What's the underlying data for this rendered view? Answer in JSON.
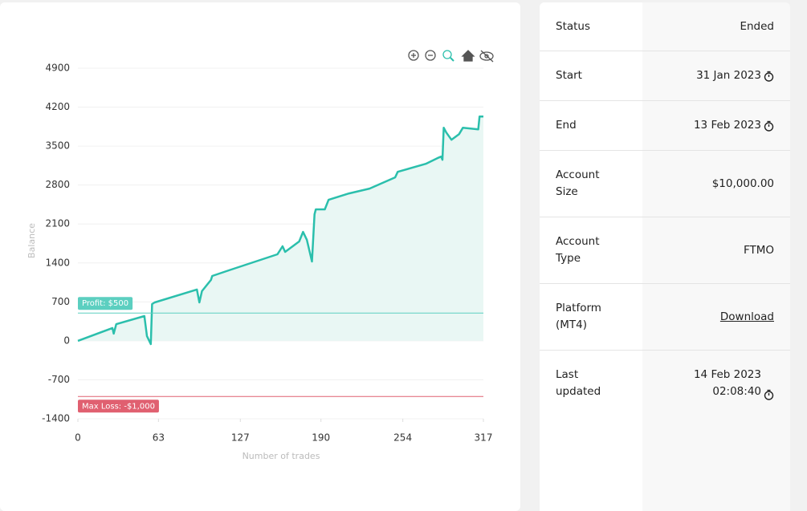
{
  "chart_data": {
    "type": "line",
    "color": "#2bbfac",
    "area_color": "#e9f7f4",
    "y_label": "Balance",
    "x_label": "Number of trades",
    "xlim": [
      0,
      317
    ],
    "xticks": [
      0,
      63,
      127,
      190,
      254,
      317
    ],
    "ylim": [
      -1400,
      4900
    ],
    "yticks": [
      4900,
      4200,
      3500,
      2800,
      2100,
      1400,
      700,
      0,
      -700,
      -1400
    ],
    "grid": true,
    "x": [
      0,
      27,
      28,
      30,
      52,
      54,
      57,
      58,
      60,
      93,
      95,
      97,
      104,
      105,
      118,
      156,
      160,
      162,
      173,
      176,
      179,
      183,
      185,
      186,
      193,
      196,
      212,
      228,
      248,
      250,
      272,
      281,
      284,
      285,
      286,
      288,
      292,
      298,
      301,
      313,
      314,
      317
    ],
    "values": [
      0,
      230,
      130,
      300,
      446,
      86,
      -58,
      662,
      690,
      922,
      691,
      893,
      1094,
      1166,
      1267,
      1555,
      1699,
      1598,
      1786,
      1958,
      1814,
      1426,
      2275,
      2362,
      2362,
      2534,
      2650,
      2736,
      2938,
      3038,
      3182,
      3283,
      3312,
      3254,
      3830,
      3744,
      3614,
      3715,
      3830,
      3802,
      4032,
      4032
    ],
    "thresholds": [
      {
        "value": 500,
        "label": "Profit: $500",
        "color": "#5ccfc0"
      },
      {
        "value": -1000,
        "label": "Max Loss: -$1,000",
        "color": "#e06070"
      }
    ]
  },
  "panel": {
    "rows": [
      {
        "label": "Status",
        "value": "Ended"
      },
      {
        "label": "Start",
        "value": "31 Jan 2023"
      },
      {
        "label": "End",
        "value": "13 Feb 2023"
      },
      {
        "label": "Account Size",
        "value": "$10,000.00"
      },
      {
        "label": "Account Type",
        "value": "FTMO"
      },
      {
        "label": "Platform (MT4)",
        "value": "Download"
      },
      {
        "label": "Last updated",
        "value": "14 Feb 2023 02:08:40"
      }
    ]
  }
}
